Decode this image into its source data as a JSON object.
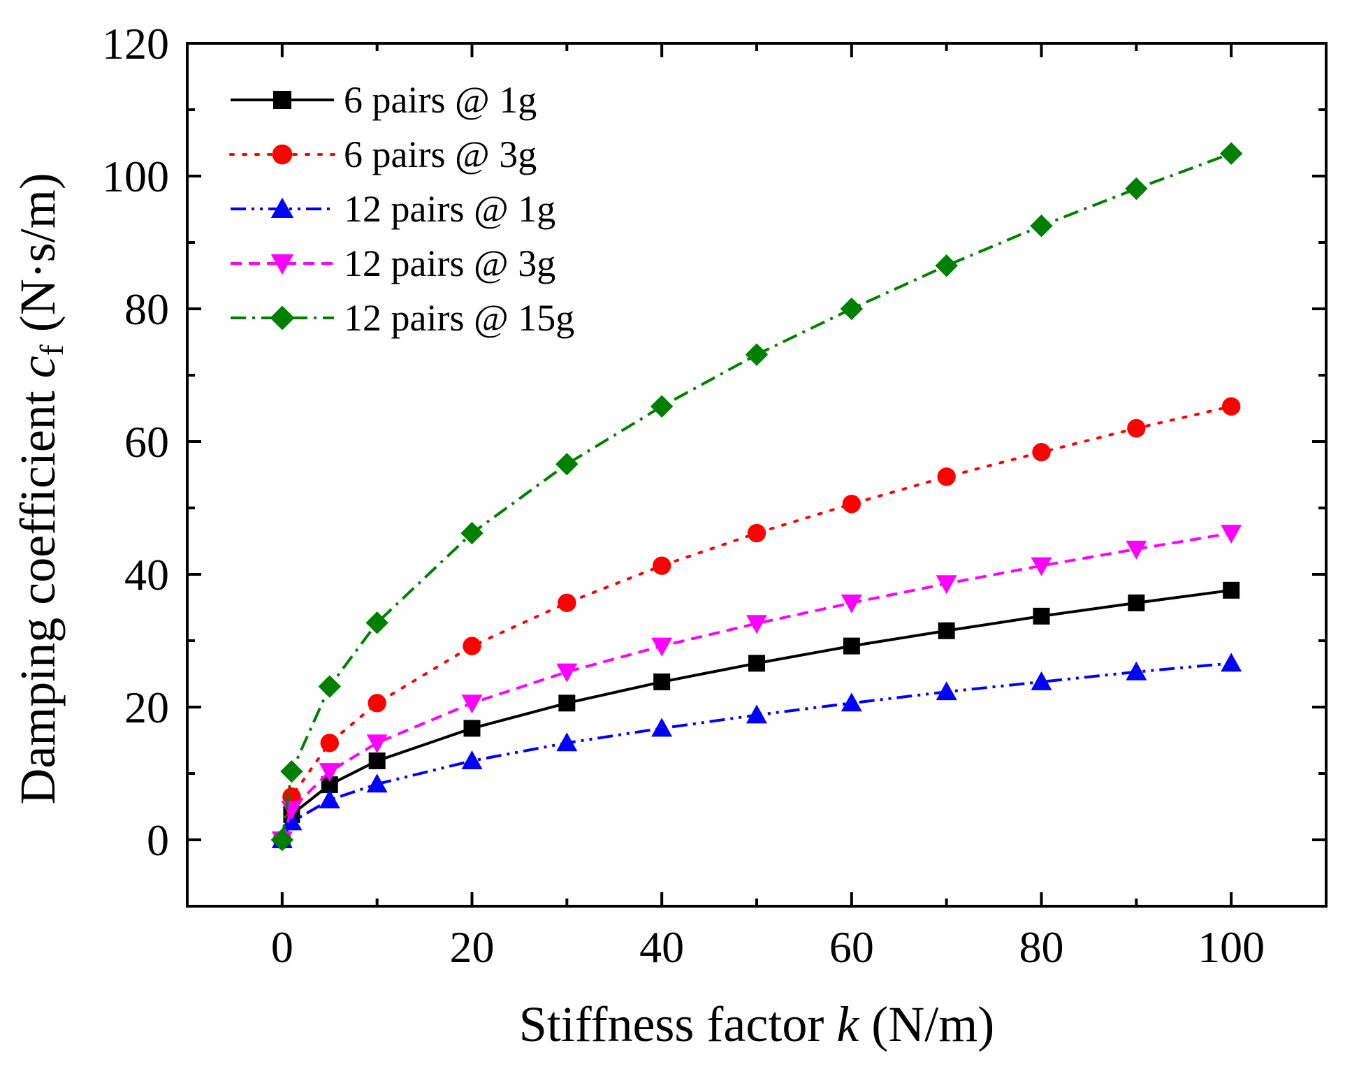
{
  "chart_data": {
    "type": "line",
    "title": "",
    "xlabel": {
      "main": "Stiffness factor ",
      "var": "k",
      "unit": " (N/m)"
    },
    "ylabel": {
      "main": "Damping coefficient ",
      "var": "c",
      "sub": "f",
      "unit": " (N·s/m)"
    },
    "xlim": [
      -10,
      110
    ],
    "ylim": [
      -10,
      120
    ],
    "xticks": [
      0,
      20,
      40,
      60,
      80,
      100
    ],
    "yticks": [
      0,
      20,
      40,
      60,
      80,
      100,
      120
    ],
    "legend_position": "top-left",
    "grid": false,
    "x": [
      0,
      1,
      5,
      10,
      20,
      30,
      40,
      50,
      60,
      70,
      80,
      90,
      100
    ],
    "series": [
      {
        "name": "6 pairs @ 1g",
        "color": "#000000",
        "marker": "square",
        "dash": "solid",
        "values": [
          0,
          3.8,
          8.3,
          11.9,
          16.8,
          20.6,
          23.8,
          26.6,
          29.2,
          31.5,
          33.7,
          35.7,
          37.6
        ]
      },
      {
        "name": "6 pairs @ 3g",
        "color": "#ff0000",
        "marker": "circle",
        "dash": "dot",
        "values": [
          0,
          6.5,
          14.6,
          20.6,
          29.2,
          35.7,
          41.3,
          46.2,
          50.6,
          54.7,
          58.4,
          62.0,
          65.3
        ]
      },
      {
        "name": "12 pairs @ 1g",
        "color": "#0000ff",
        "marker": "triangle-up",
        "dash": "dashdotdot",
        "values": [
          0,
          2.7,
          6.0,
          8.4,
          11.9,
          14.6,
          16.8,
          18.8,
          20.6,
          22.3,
          23.8,
          25.3,
          26.6
        ]
      },
      {
        "name": "12 pairs @ 3g",
        "color": "#ff00ff",
        "marker": "triangle-down",
        "dash": "dash",
        "values": [
          0,
          4.6,
          10.3,
          14.6,
          20.6,
          25.3,
          29.2,
          32.6,
          35.7,
          38.6,
          41.3,
          43.8,
          46.2
        ]
      },
      {
        "name": "12 pairs @ 15g",
        "color": "#008000",
        "marker": "diamond",
        "dash": "dashdot",
        "values": [
          0,
          10.3,
          23.1,
          32.7,
          46.2,
          56.6,
          65.3,
          73.1,
          80.0,
          86.5,
          92.5,
          98.1,
          103.4
        ]
      }
    ]
  }
}
